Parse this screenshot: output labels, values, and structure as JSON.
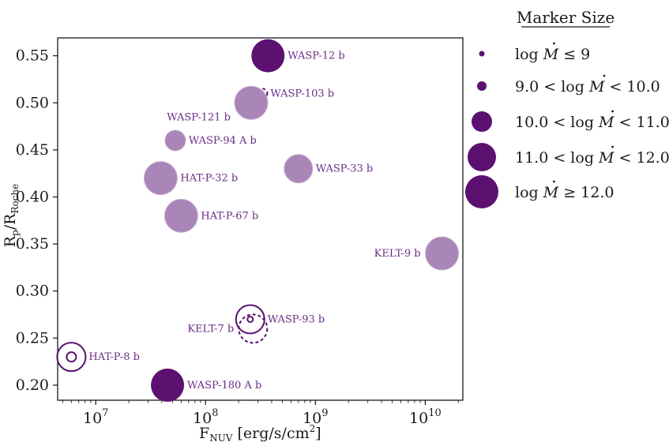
{
  "chart_data": {
    "type": "scatter",
    "xscale": "log",
    "xlim": [
      4500000.0,
      22000000000.0
    ],
    "ylim": [
      0.184,
      0.569
    ],
    "xlabel": {
      "main": "F",
      "sub": "NUV",
      "units": " [erg/s/cm",
      "sup": "2",
      "close": "]"
    },
    "ylabel": {
      "a": "R",
      "a_sub": "p",
      "slash": "/R",
      "b_sub": "Roche"
    },
    "yticks": [
      "0.20",
      "0.25",
      "0.30",
      "0.35",
      "0.40",
      "0.45",
      "0.50",
      "0.55"
    ],
    "ytick_values": [
      0.2,
      0.25,
      0.3,
      0.35,
      0.4,
      0.45,
      0.5,
      0.55
    ],
    "xticks": [
      {
        "value": 10000000.0,
        "base": "10",
        "exp": "7"
      },
      {
        "value": 100000000.0,
        "base": "10",
        "exp": "8"
      },
      {
        "value": 1000000000.0,
        "base": "10",
        "exp": "9"
      },
      {
        "value": 10000000000.0,
        "base": "10",
        "exp": "10"
      }
    ],
    "colors": {
      "dark": "#5c1170",
      "light": "#a985b8",
      "label": "#6a2c86",
      "axis": "#1a1a1a"
    },
    "size_classes": {
      "1": 3.5,
      "2": 6,
      "3": 13,
      "4": 18,
      "5": 21
    },
    "points": [
      {
        "name": "WASP-12 b",
        "x": 370000000.0,
        "y": 0.55,
        "size": 5,
        "style": "dark",
        "label": "WASP-12 b",
        "label_pos": "right"
      },
      {
        "name": "WASP-103 b",
        "x": 330000000.0,
        "y": 0.51,
        "size": 2,
        "style": "dashed",
        "label": "WASP-103 b",
        "label_pos": "right"
      },
      {
        "name": "WASP-121 b",
        "x": 260000000.0,
        "y": 0.5,
        "size": 5,
        "style": "light",
        "label": "WASP-121 b",
        "label_pos": "below-left"
      },
      {
        "name": "WASP-94 A b",
        "x": 53000000.0,
        "y": 0.46,
        "size": 3,
        "style": "light",
        "label": "WASP-94 A b",
        "label_pos": "right"
      },
      {
        "name": "HAT-P-32 b",
        "x": 39000000.0,
        "y": 0.42,
        "size": 5,
        "style": "light",
        "label": "HAT-P-32 b",
        "label_pos": "right"
      },
      {
        "name": "WASP-33 b",
        "x": 700000000.0,
        "y": 0.43,
        "size": 4,
        "style": "light",
        "label": "WASP-33 b",
        "label_pos": "right"
      },
      {
        "name": "HAT-P-67 b",
        "x": 60000000.0,
        "y": 0.38,
        "size": 5,
        "style": "light",
        "label": "HAT-P-67 b",
        "label_pos": "right"
      },
      {
        "name": "KELT-9 b",
        "x": 14200000000.0,
        "y": 0.34,
        "size": 5,
        "style": "light",
        "label": "KELT-9 b",
        "label_pos": "left"
      },
      {
        "name": "WASP-93 b outer",
        "x": 255000000.0,
        "y": 0.27,
        "size": 4,
        "style": "open",
        "label": "WASP-93 b",
        "label_pos": "right"
      },
      {
        "name": "WASP-93 b inner",
        "x": 255000000.0,
        "y": 0.27,
        "size": 1,
        "style": "open",
        "label": "",
        "label_pos": "none"
      },
      {
        "name": "KELT-7 b",
        "x": 270000000.0,
        "y": 0.26,
        "size": 4,
        "style": "dashed",
        "label": "KELT-7 b",
        "label_pos": "left"
      },
      {
        "name": "HAT-P-8 b outer",
        "x": 6000000.0,
        "y": 0.23,
        "size": 4,
        "style": "open",
        "label": "HAT-P-8 b",
        "label_pos": "right"
      },
      {
        "name": "HAT-P-8 b inner",
        "x": 6000000.0,
        "y": 0.23,
        "size": 2,
        "style": "open",
        "label": "",
        "label_pos": "none"
      },
      {
        "name": "WASP-180 A b",
        "x": 45000000.0,
        "y": 0.2,
        "size": 5,
        "style": "dark",
        "label": "WASP-180 A b",
        "label_pos": "right"
      }
    ],
    "legend": {
      "title": "Marker Size",
      "placement": "right",
      "entries": [
        {
          "size": 1,
          "pre": "log ",
          "m": "M",
          "post": " ≤ 9"
        },
        {
          "size": 2,
          "pre": "9.0 < log ",
          "m": "M",
          "post": " < 10.0"
        },
        {
          "size": 3,
          "pre": "10.0 < log ",
          "m": "M",
          "post": " < 11.0"
        },
        {
          "size": 4,
          "pre": "11.0 < log ",
          "m": "M",
          "post": " < 12.0"
        },
        {
          "size": 5,
          "pre": "log ",
          "m": "M",
          "post": " ≥ 12.0"
        }
      ]
    }
  }
}
